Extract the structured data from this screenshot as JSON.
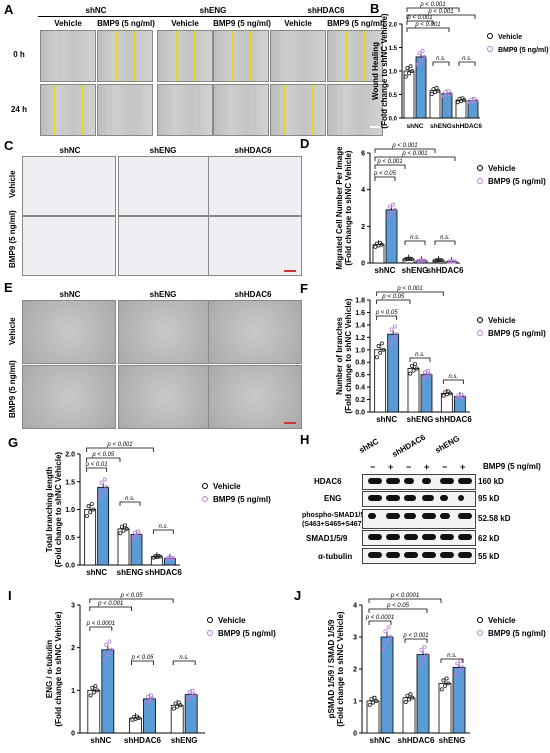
{
  "panels": {
    "A": {
      "label": "A",
      "groups": [
        "shNC",
        "shENG",
        "shHDAC6"
      ],
      "treatments": [
        "Vehicle",
        "BMP9 (5 ng/ml)"
      ],
      "rows": [
        "0 h",
        "24 h"
      ]
    },
    "C": {
      "label": "C",
      "groups": [
        "shNC",
        "shENG",
        "shHDAC6"
      ],
      "rows": [
        "Vehicle",
        "BMP9 (5 ng/ml)"
      ]
    },
    "E": {
      "label": "E",
      "groups": [
        "shNC",
        "shENG",
        "shHDAC6"
      ],
      "rows": [
        "Vehicle",
        "BMP9 (5 ng/ml)"
      ]
    },
    "H": {
      "label": "H",
      "groups": [
        "shNC",
        "shHDAC6",
        "shENG"
      ],
      "lanes": [
        "−",
        "+",
        "−",
        "+",
        "−",
        "+"
      ],
      "treatment": "BMP9 (5 ng/ml)",
      "proteins": [
        "HDAC6",
        "ENG",
        "phospho-SMAD1/5/9",
        "(S463+S465+S467)",
        "SMAD1/5/9",
        "α-tubulin"
      ],
      "sizes": [
        "160 kD",
        "95 kD",
        "52.58 kD",
        "62 kD",
        "55 kD"
      ]
    }
  },
  "legend": {
    "vehicle": "Vehicle",
    "bmp9": "BMP9 (5 ng/ml)"
  },
  "colors": {
    "vehicle": "#ffffff",
    "bmp9": "#5b9bd5",
    "vehicle_dot": "#222222",
    "bmp9_dot": "#b57edc",
    "yellow_line": "#e6d31a"
  },
  "chart_data": [
    {
      "panel": "B",
      "type": "bar",
      "categories": [
        "shNC",
        "shENG",
        "shHDAC6"
      ],
      "series": [
        {
          "name": "Vehicle",
          "values": [
            1.0,
            0.58,
            0.38
          ]
        },
        {
          "name": "BMP9 (5 ng/ml)",
          "values": [
            1.3,
            0.52,
            0.37
          ]
        }
      ],
      "ylabel": "Wound Healing (Fold change to shNC Vehicle)",
      "ylim": [
        0,
        2.0
      ],
      "yticks": [
        "0.0",
        "0.5",
        "1.0",
        "1.5",
        "2.0"
      ],
      "annotations": [
        "p < 0.001",
        "p < 0.001",
        "p < 0.001",
        "p < 0.001",
        "n.s.",
        "n.s."
      ]
    },
    {
      "panel": "D",
      "type": "bar",
      "categories": [
        "shNC",
        "shENG",
        "shHDAC6"
      ],
      "series": [
        {
          "name": "Vehicle",
          "values": [
            1.0,
            0.22,
            0.15
          ]
        },
        {
          "name": "BMP9 (5 ng/ml)",
          "values": [
            2.9,
            0.12,
            0.08
          ]
        }
      ],
      "ylabel": "Migrated Cell Number Per Image (Fold change to shNC Vehicle)",
      "ylim": [
        0,
        6
      ],
      "yticks": [
        "0",
        "2",
        "4",
        "6"
      ],
      "annotations": [
        "p < 0.001",
        "p < 0.001",
        "p < 0.001",
        "p < 0.05",
        "n.s.",
        "n.s."
      ]
    },
    {
      "panel": "F",
      "type": "bar",
      "categories": [
        "shNC",
        "shENG",
        "shHDAC6"
      ],
      "series": [
        {
          "name": "Vehicle",
          "values": [
            1.0,
            0.7,
            0.3
          ]
        },
        {
          "name": "BMP9 (5 ng/ml)",
          "values": [
            1.25,
            0.6,
            0.25
          ]
        }
      ],
      "ylabel": "Number of branches (Fold change to shNC Vehicle)",
      "ylim": [
        0,
        1.8
      ],
      "yticks": [
        "0.0",
        "0.2",
        "0.4",
        "0.6",
        "0.8",
        "1.0",
        "1.2",
        "1.4",
        "1.6",
        "1.8"
      ],
      "annotations": [
        "p < 0.001",
        "p < 0.05",
        "p < 0.05",
        "n.s.",
        "n.s."
      ]
    },
    {
      "panel": "G",
      "type": "bar",
      "categories": [
        "shNC",
        "shENG",
        "shHDAC6"
      ],
      "series": [
        {
          "name": "Vehicle",
          "values": [
            1.0,
            0.65,
            0.15
          ]
        },
        {
          "name": "BMP9 (5 ng/ml)",
          "values": [
            1.4,
            0.55,
            0.12
          ]
        }
      ],
      "ylabel": "Total branching length (Fold change to shNC Vehicle)",
      "ylim": [
        0,
        2.0
      ],
      "yticks": [
        "0.0",
        "0.5",
        "1.0",
        "1.5",
        "2.0"
      ],
      "annotations": [
        "p < 0.001",
        "p < 0.05",
        "p < 0.01",
        "n.s.",
        "n.s."
      ]
    },
    {
      "panel": "I",
      "type": "bar",
      "categories": [
        "shNC",
        "shHDAC6",
        "shENG"
      ],
      "series": [
        {
          "name": "Vehicle",
          "values": [
            1.0,
            0.35,
            0.65
          ]
        },
        {
          "name": "BMP9 (5 ng/ml)",
          "values": [
            1.95,
            0.8,
            0.9
          ]
        }
      ],
      "ylabel": "ENG / α-tubulin (Fold change to shNC Vehicle)",
      "ylim": [
        0,
        3
      ],
      "yticks": [
        "0",
        "1",
        "2",
        "3"
      ],
      "annotations": [
        "p < 0.05",
        "p < 0.001",
        "p < 0.0001",
        "p < 0.05",
        "n.s."
      ]
    },
    {
      "panel": "J",
      "type": "bar",
      "categories": [
        "shNC",
        "shHDAC6",
        "shENG"
      ],
      "series": [
        {
          "name": "Vehicle",
          "values": [
            1.0,
            1.1,
            1.55
          ]
        },
        {
          "name": "BMP9 (5 ng/ml)",
          "values": [
            3.0,
            2.45,
            2.05
          ]
        }
      ],
      "ylabel": "pSMAD 1/5/9 / SMAD 1/5/9 (Fold change to shNC Vehicle)",
      "ylim": [
        0,
        4
      ],
      "yticks": [
        "0",
        "1",
        "2",
        "3",
        "4"
      ],
      "annotations": [
        "p < 0.0001",
        "p < 0.05",
        "p < 0.0001",
        "p < 0.001",
        "n.s."
      ]
    }
  ]
}
